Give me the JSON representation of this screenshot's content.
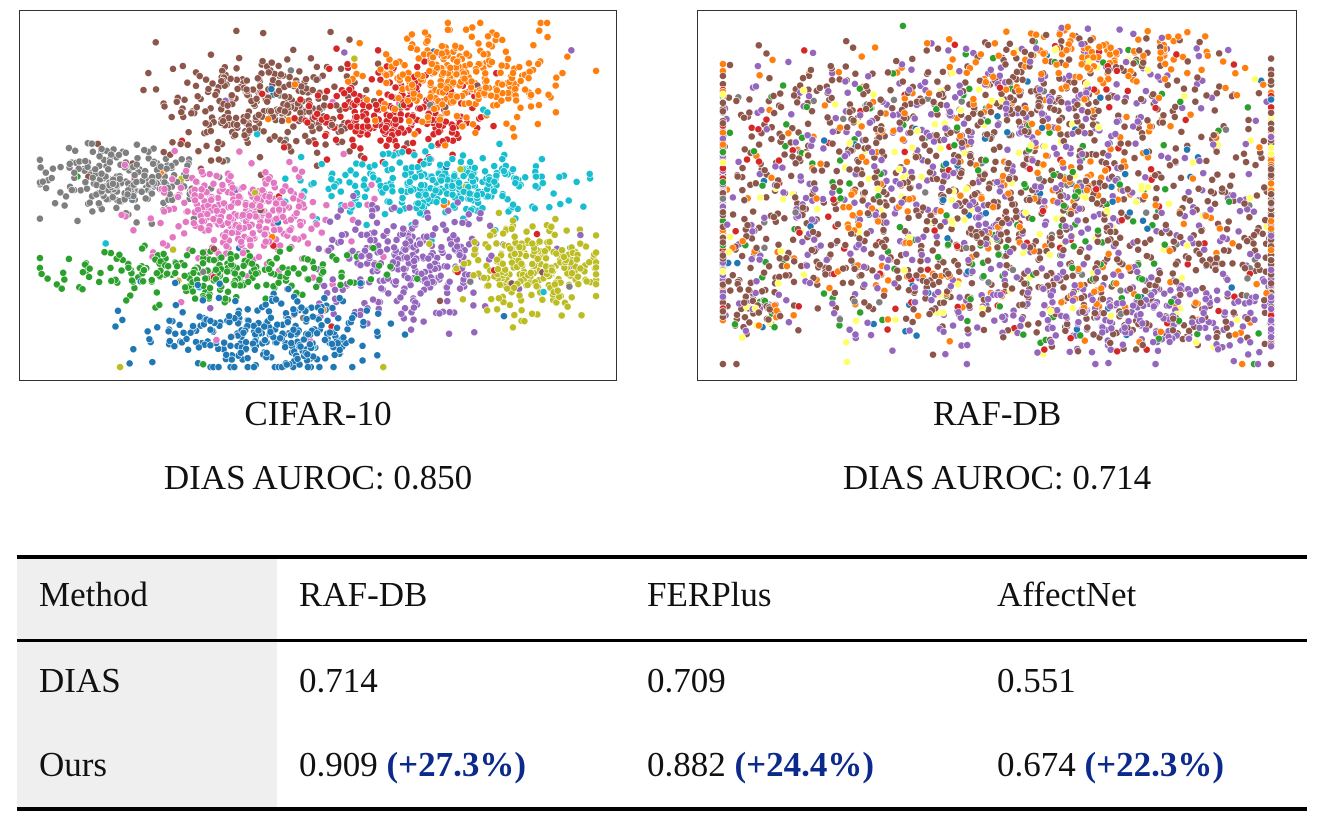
{
  "plots": [
    {
      "title": "CIFAR-10",
      "metric": "DIAS AUROC: 0.850"
    },
    {
      "title": "RAF-DB",
      "metric": "DIAS AUROC: 0.714"
    }
  ],
  "table": {
    "headers": [
      "Method",
      "RAF-DB",
      "FERPlus",
      "AffectNet"
    ],
    "rows": [
      {
        "method": "DIAS",
        "cells": [
          {
            "value": "0.714",
            "gain": ""
          },
          {
            "value": "0.709",
            "gain": ""
          },
          {
            "value": "0.551",
            "gain": ""
          }
        ]
      },
      {
        "method": "Ours",
        "cells": [
          {
            "value": "0.909",
            "gain": "(+27.3%)"
          },
          {
            "value": "0.882",
            "gain": "(+24.4%)"
          },
          {
            "value": "0.674",
            "gain": "(+22.3%)"
          }
        ]
      }
    ]
  },
  "colors": {
    "gain_text": "#0b2a8c",
    "header_shade": "#efefef",
    "palette": [
      "#1f77b4",
      "#ff7f0e",
      "#2ca02c",
      "#d62728",
      "#9467bd",
      "#8c564b",
      "#e377c2",
      "#7f7f7f",
      "#bcbd22",
      "#17becf",
      "#ffff66"
    ]
  }
}
